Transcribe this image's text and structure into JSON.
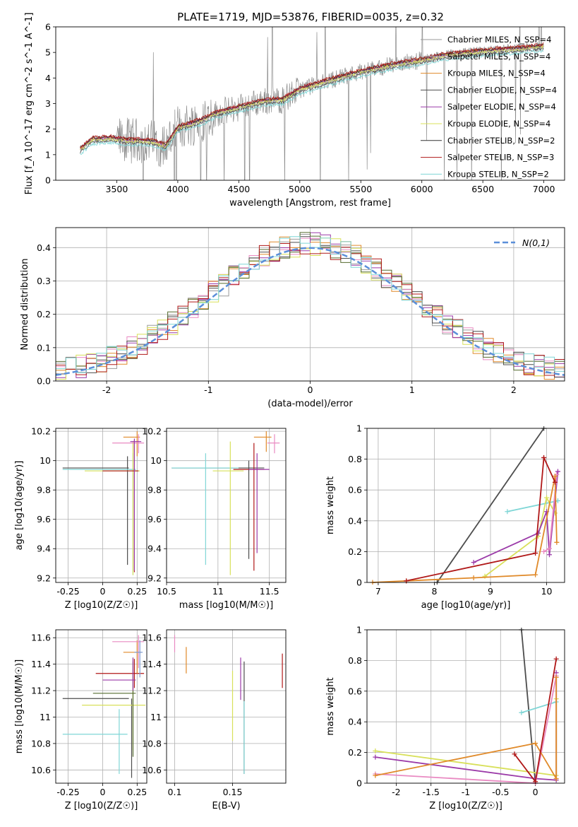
{
  "figure": {
    "title": "PLATE=1719, MJD=53876, FIBERID=0035, z=0.32"
  },
  "chart_data": [
    {
      "id": "spectrum",
      "type": "line",
      "title": "PLATE=1719, MJD=53876, FIBERID=0035, z=0.32",
      "xlabel": "wavelength [Angstrom, rest frame]",
      "ylabel": "Flux [f_λ 10^-17 erg cm^-2 s^-1 A^-1]",
      "xlim": [
        3000,
        7170
      ],
      "ylim": [
        0,
        6
      ],
      "xticks": [
        3500,
        4000,
        4500,
        5000,
        5500,
        6000,
        6500,
        7000
      ],
      "yticks": [
        0,
        1,
        2,
        3,
        4,
        5,
        6
      ],
      "grid": false,
      "legend": "upper right",
      "series": [
        {
          "name": "Chabrier MILES, N_SSP=4",
          "color": "#9a9a9a"
        },
        {
          "name": "Salpeter MILES, N_SSP=4",
          "color": "#b4b4b4"
        },
        {
          "name": "Kroupa MILES, N_SSP=4",
          "color": "#e08a2a"
        },
        {
          "name": "Chabrier ELODIE, N_SSP=4",
          "color": "#4d4d4d"
        },
        {
          "name": "Salpeter ELODIE, N_SSP=4",
          "color": "#9b3aa8"
        },
        {
          "name": "Kroupa ELODIE, N_SSP=4",
          "color": "#d8e05a"
        },
        {
          "name": "Chabrier STELIB, N_SSP=2",
          "color": "#333333"
        },
        {
          "name": "Salpeter STELIB, N_SSP=3",
          "color": "#b01818"
        },
        {
          "name": "Kroupa STELIB, N_SSP=2",
          "color": "#7fd6d6"
        }
      ],
      "model_knots": {
        "x": [
          3200,
          3300,
          3450,
          3600,
          3700,
          3800,
          3900,
          3950,
          4000,
          4200,
          4300,
          4500,
          4700,
          4860,
          5000,
          5200,
          5500,
          5800,
          6000,
          6200,
          6500,
          6800,
          7000
        ],
        "y": [
          1.2,
          1.6,
          1.65,
          1.55,
          1.55,
          1.5,
          1.35,
          1.7,
          2.05,
          2.35,
          2.6,
          2.85,
          3.1,
          3.15,
          3.55,
          3.85,
          4.25,
          4.55,
          4.7,
          4.9,
          5.05,
          5.15,
          5.25
        ]
      }
    },
    {
      "id": "residuals",
      "type": "line",
      "xlabel": "(data-model)/error",
      "ylabel": "Normed distribution",
      "xlim": [
        -2.5,
        2.5
      ],
      "ylim": [
        0,
        0.46
      ],
      "xticks": [
        -2,
        -1,
        0,
        1,
        2
      ],
      "yticks": [
        0.0,
        0.1,
        0.2,
        0.3,
        0.4
      ],
      "grid": true,
      "legend": "upper right",
      "reference": {
        "name": "N(0,1)",
        "color": "#5b8fd9",
        "mean": 0,
        "sigma": 1
      },
      "bin_width": 0.1
    },
    {
      "id": "z-age",
      "type": "scatter",
      "xlabel": "Z [log10(Z/Z☉)]",
      "ylabel": "age  [log10(age/yr)]",
      "xlim": [
        -0.34,
        0.32
      ],
      "ylim": [
        9.17,
        10.22
      ],
      "xticks": [
        -0.25,
        0.0,
        0.25
      ],
      "yticks": [
        9.2,
        9.4,
        9.6,
        9.8,
        10.0,
        10.2
      ],
      "grid": true,
      "points": [
        {
          "x": 0.18,
          "y": 9.95,
          "xlo": -0.29,
          "xhi": 0.19,
          "ylo": 9.29,
          "yhi": 10.03,
          "color": "#4d4d4d"
        },
        {
          "x": 0.22,
          "y": 9.94,
          "xlo": -0.29,
          "xhi": 0.24,
          "ylo": 9.22,
          "yhi": 10.05,
          "color": "#7fd6d6"
        },
        {
          "x": 0.22,
          "y": 9.93,
          "xlo": -0.13,
          "xhi": 0.27,
          "ylo": 9.22,
          "yhi": 10.13,
          "color": "#d8e05a"
        },
        {
          "x": 0.23,
          "y": 9.93,
          "xlo": 0.0,
          "xhi": 0.26,
          "ylo": 9.24,
          "yhi": 10.14,
          "color": "#b01818"
        },
        {
          "x": 0.25,
          "y": 10.16,
          "xlo": 0.15,
          "xhi": 0.27,
          "ylo": 10.03,
          "yhi": 10.2,
          "color": "#e08a2a"
        },
        {
          "x": 0.26,
          "y": 10.12,
          "xlo": 0.07,
          "xhi": 0.3,
          "ylo": 10.05,
          "yhi": 10.18,
          "color": "#e98ac2"
        },
        {
          "x": 0.23,
          "y": 10.13,
          "xlo": 0.2,
          "xhi": 0.28,
          "ylo": 9.25,
          "yhi": 10.15,
          "color": "#9b3aa8"
        }
      ]
    },
    {
      "id": "mass-age",
      "type": "scatter",
      "xlabel": "mass [log10(M/M☉)]",
      "ylabel": "",
      "xlim": [
        10.5,
        11.66
      ],
      "ylim": [
        9.17,
        10.22
      ],
      "xticks": [
        10.5,
        11.0,
        11.5
      ],
      "yticks": [
        9.2,
        9.4,
        9.6,
        9.8,
        10.0,
        10.2
      ],
      "grid": true,
      "points": [
        {
          "x": 11.3,
          "y": 9.95,
          "xlo": 10.55,
          "xhi": 11.45,
          "ylo": 9.33,
          "yhi": 10.0,
          "color": "#4d4d4d"
        },
        {
          "x": 10.88,
          "y": 9.95,
          "xlo": 10.55,
          "xhi": 11.2,
          "ylo": 9.29,
          "yhi": 10.05,
          "color": "#7fd6d6"
        },
        {
          "x": 11.12,
          "y": 9.93,
          "xlo": 10.95,
          "xhi": 11.25,
          "ylo": 9.22,
          "yhi": 10.13,
          "color": "#d8e05a"
        },
        {
          "x": 11.35,
          "y": 9.94,
          "xlo": 11.15,
          "xhi": 11.45,
          "ylo": 9.25,
          "yhi": 10.12,
          "color": "#b01818"
        },
        {
          "x": 11.47,
          "y": 10.16,
          "xlo": 11.35,
          "xhi": 11.52,
          "ylo": 10.06,
          "yhi": 10.2,
          "color": "#e08a2a"
        },
        {
          "x": 11.55,
          "y": 10.12,
          "xlo": 11.48,
          "xhi": 11.6,
          "ylo": 10.05,
          "yhi": 10.18,
          "color": "#e98ac2"
        },
        {
          "x": 11.38,
          "y": 9.94,
          "xlo": 11.3,
          "xhi": 11.5,
          "ylo": 9.37,
          "yhi": 10.05,
          "color": "#9b3aa8"
        }
      ]
    },
    {
      "id": "age-weight",
      "type": "line",
      "xlabel": "age  [log10(age/yr)]",
      "ylabel": "mass weight",
      "xlim": [
        6.8,
        10.32
      ],
      "ylim": [
        0,
        1
      ],
      "xticks": [
        7,
        8,
        9,
        10
      ],
      "yticks": [
        0.0,
        0.2,
        0.4,
        0.6,
        0.8,
        1.0
      ],
      "grid": true,
      "series": [
        {
          "color": "#4d4d4d",
          "x": [
            8.05,
            9.95
          ],
          "y": [
            0.0,
            1.0
          ]
        },
        {
          "color": "#7fd6d6",
          "x": [
            9.3,
            10.2
          ],
          "y": [
            0.46,
            0.53
          ]
        },
        {
          "color": "#d8e05a",
          "x": [
            8.9,
            9.85,
            10.0,
            10.15
          ],
          "y": [
            0.04,
            0.3,
            0.55,
            0.45
          ]
        },
        {
          "color": "#9b3aa8",
          "x": [
            8.7,
            9.85,
            10.0,
            10.05,
            10.2
          ],
          "y": [
            0.13,
            0.32,
            0.46,
            0.18,
            0.72
          ]
        },
        {
          "color": "#e98ac2",
          "x": [
            9.95,
            10.05,
            10.18
          ],
          "y": [
            0.2,
            0.22,
            0.7
          ]
        },
        {
          "color": "#e08a2a",
          "x": [
            6.9,
            7.5,
            8.7,
            9.8,
            10.15,
            10.18
          ],
          "y": [
            0.0,
            0.01,
            0.03,
            0.05,
            0.69,
            0.26
          ]
        },
        {
          "color": "#b01818",
          "x": [
            7.5,
            9.8,
            9.95,
            10.15
          ],
          "y": [
            0.01,
            0.19,
            0.81,
            0.65
          ]
        }
      ]
    },
    {
      "id": "z-mass",
      "type": "scatter",
      "xlabel": "Z [log10(Z/Z☉)]",
      "ylabel": "mass [log10(M/M☉)]",
      "xlim": [
        -0.34,
        0.32
      ],
      "ylim": [
        10.5,
        11.66
      ],
      "xticks": [
        -0.25,
        0.0,
        0.25
      ],
      "yticks": [
        10.6,
        10.8,
        11.0,
        11.2,
        11.4,
        11.6
      ],
      "grid": true,
      "points": [
        {
          "x": 0.21,
          "y": 11.14,
          "xlo": -0.29,
          "xhi": 0.19,
          "ylo": 10.54,
          "yhi": 11.14,
          "color": "#4d4d4d"
        },
        {
          "x": 0.12,
          "y": 10.87,
          "xlo": -0.29,
          "xhi": 0.18,
          "ylo": 10.57,
          "yhi": 11.06,
          "color": "#7fd6d6"
        },
        {
          "x": 0.22,
          "y": 11.09,
          "xlo": -0.15,
          "xhi": 0.31,
          "ylo": 10.75,
          "yhi": 11.45,
          "color": "#d8e05a"
        },
        {
          "x": 0.22,
          "y": 11.18,
          "xlo": -0.07,
          "xhi": 0.24,
          "ylo": 10.7,
          "yhi": 11.42,
          "color": "#556b2f"
        },
        {
          "x": 0.23,
          "y": 11.33,
          "xlo": -0.05,
          "xhi": 0.3,
          "ylo": 11.22,
          "yhi": 11.44,
          "color": "#b01818"
        },
        {
          "x": 0.22,
          "y": 11.28,
          "xlo": 0.0,
          "xhi": 0.24,
          "ylo": 11.2,
          "yhi": 11.45,
          "color": "#9b3aa8"
        },
        {
          "x": 0.25,
          "y": 11.49,
          "xlo": 0.15,
          "xhi": 0.28,
          "ylo": 11.33,
          "yhi": 11.58,
          "color": "#e08a2a"
        },
        {
          "x": 0.26,
          "y": 11.57,
          "xlo": 0.07,
          "xhi": 0.3,
          "ylo": 11.37,
          "yhi": 11.62,
          "color": "#e98ac2"
        },
        {
          "x": 0.27,
          "y": 11.49,
          "xlo": 0.23,
          "xhi": 0.29,
          "ylo": 11.3,
          "yhi": 11.58,
          "color": "#7f9fd6"
        }
      ]
    },
    {
      "id": "ebv-mass",
      "type": "scatter",
      "xlabel": "E(B-V)",
      "ylabel": "",
      "xlim": [
        0.093,
        0.196
      ],
      "ylim": [
        10.5,
        11.66
      ],
      "xticks": [
        0.1,
        0.15
      ],
      "yticks": [
        10.6,
        10.8,
        11.0,
        11.2,
        11.4,
        11.6
      ],
      "grid": true,
      "points": [
        {
          "x": 0.1,
          "y": 11.6,
          "ylo": 11.49,
          "yhi": 11.62,
          "color": "#e98ac2"
        },
        {
          "x": 0.11,
          "y": 11.45,
          "ylo": 11.33,
          "yhi": 11.53,
          "color": "#e08a2a"
        },
        {
          "x": 0.15,
          "y": 11.1,
          "ylo": 10.82,
          "yhi": 11.35,
          "color": "#d8e05a"
        },
        {
          "x": 0.157,
          "y": 11.3,
          "ylo": 11.13,
          "yhi": 11.45,
          "color": "#9b3aa8"
        },
        {
          "x": 0.16,
          "y": 11.18,
          "ylo": 10.57,
          "yhi": 11.42,
          "color": "#4d4d4d"
        },
        {
          "x": 0.16,
          "y": 10.9,
          "ylo": 10.57,
          "yhi": 11.12,
          "color": "#7fd6d6"
        },
        {
          "x": 0.193,
          "y": 11.35,
          "ylo": 11.22,
          "yhi": 11.48,
          "color": "#b01818"
        }
      ]
    },
    {
      "id": "z-weight",
      "type": "line",
      "xlabel": "Z [log10(Z/Z☉)]",
      "ylabel": "mass weight",
      "xlim": [
        -2.42,
        0.42
      ],
      "ylim": [
        0,
        1
      ],
      "xticks": [
        -2.0,
        -1.5,
        -1.0,
        -0.5,
        0.0
      ],
      "yticks": [
        0.0,
        0.2,
        0.4,
        0.6,
        0.8,
        1.0
      ],
      "grid": true,
      "series": [
        {
          "color": "#4d4d4d",
          "x": [
            -0.2,
            0.0
          ],
          "y": [
            1.0,
            0.0
          ]
        },
        {
          "color": "#7fd6d6",
          "x": [
            -0.2,
            0.3
          ],
          "y": [
            0.46,
            0.53
          ]
        },
        {
          "color": "#d8e05a",
          "x": [
            -2.3,
            0.3,
            0.3
          ],
          "y": [
            0.21,
            0.05,
            0.55
          ]
        },
        {
          "color": "#9b3aa8",
          "x": [
            -2.3,
            0.0,
            0.3,
            0.3
          ],
          "y": [
            0.17,
            0.03,
            0.02,
            0.72
          ]
        },
        {
          "color": "#e98ac2",
          "x": [
            -2.3,
            0.0,
            0.3
          ],
          "y": [
            0.06,
            0.0,
            0.7
          ]
        },
        {
          "color": "#e08a2a",
          "x": [
            -2.3,
            0.0,
            0.3,
            0.3
          ],
          "y": [
            0.05,
            0.26,
            0.03,
            0.69
          ]
        },
        {
          "color": "#b01818",
          "x": [
            -0.3,
            0.0,
            0.3
          ],
          "y": [
            0.19,
            0.01,
            0.81
          ]
        }
      ]
    }
  ]
}
